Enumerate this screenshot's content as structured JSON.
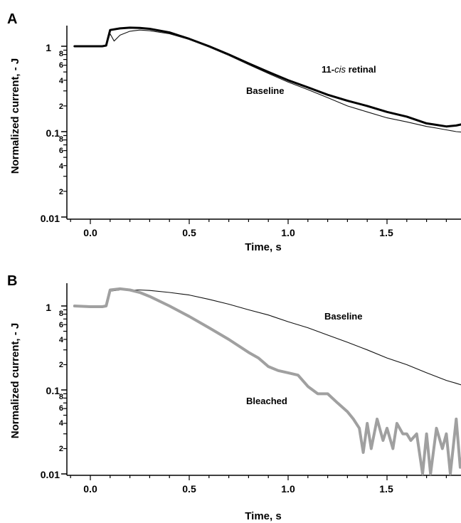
{
  "chart_data": [
    {
      "type": "line",
      "panel_label": "A",
      "xlabel": "Time, s",
      "ylabel": "Normalized current, - J",
      "y_scale": "log",
      "xlim": [
        -0.1,
        1.9
      ],
      "ylim": [
        0.009,
        2.2
      ],
      "x_ticks": [
        "0.0",
        "0.5",
        "1.0",
        "1.5"
      ],
      "y_tick_labels": {
        "major": [
          "1",
          "0.1",
          "0.01"
        ],
        "minor": [
          "8",
          "6",
          "4",
          "2"
        ]
      },
      "annotations": [
        {
          "text_prefix": "11-",
          "text_italic": "cis",
          "text_suffix": " retinal"
        },
        {
          "text": "Baseline"
        }
      ],
      "series": [
        {
          "style": "thick black",
          "x": [
            -0.08,
            0.0,
            0.06,
            0.08,
            0.1,
            0.15,
            0.2,
            0.25,
            0.3,
            0.4,
            0.5,
            0.6,
            0.7,
            0.8,
            0.9,
            1.0,
            1.1,
            1.2,
            1.3,
            1.4,
            1.5,
            1.6,
            1.7,
            1.75,
            1.8,
            1.85,
            1.9
          ],
          "y": [
            1.0,
            1.0,
            1.0,
            1.02,
            1.55,
            1.62,
            1.65,
            1.64,
            1.6,
            1.45,
            1.22,
            1.0,
            0.8,
            0.63,
            0.5,
            0.4,
            0.33,
            0.27,
            0.23,
            0.2,
            0.17,
            0.15,
            0.125,
            0.12,
            0.115,
            0.118,
            0.125
          ]
        },
        {
          "style": "thin black",
          "x": [
            -0.08,
            0.0,
            0.06,
            0.08,
            0.1,
            0.12,
            0.15,
            0.2,
            0.25,
            0.3,
            0.4,
            0.5,
            0.6,
            0.7,
            0.8,
            0.9,
            1.0,
            1.1,
            1.2,
            1.3,
            1.4,
            1.5,
            1.6,
            1.7,
            1.75,
            1.8,
            1.85,
            1.9
          ],
          "y": [
            1.0,
            1.0,
            1.0,
            1.02,
            1.4,
            1.15,
            1.35,
            1.5,
            1.55,
            1.52,
            1.4,
            1.2,
            0.98,
            0.78,
            0.61,
            0.48,
            0.38,
            0.31,
            0.25,
            0.2,
            0.17,
            0.145,
            0.13,
            0.115,
            0.11,
            0.105,
            0.1,
            0.098
          ]
        }
      ]
    },
    {
      "type": "line",
      "panel_label": "B",
      "xlabel": "Time, s",
      "ylabel": "Normalized current, - J",
      "y_scale": "log",
      "xlim": [
        -0.1,
        1.9
      ],
      "ylim": [
        0.009,
        2.2
      ],
      "x_ticks": [
        "0.0",
        "0.5",
        "1.0",
        "1.5"
      ],
      "y_tick_labels": {
        "major": [
          "1",
          "0.1",
          "0.01"
        ],
        "minor": [
          "8",
          "6",
          "4",
          "2"
        ]
      },
      "annotations": [
        {
          "text": "Baseline"
        },
        {
          "text": "Bleached"
        }
      ],
      "series": [
        {
          "style": "thin black",
          "x": [
            -0.08,
            0.0,
            0.06,
            0.08,
            0.1,
            0.15,
            0.2,
            0.25,
            0.3,
            0.4,
            0.5,
            0.6,
            0.7,
            0.8,
            0.9,
            1.0,
            1.1,
            1.2,
            1.3,
            1.4,
            1.5,
            1.6,
            1.7,
            1.8,
            1.85,
            1.9
          ],
          "y": [
            1.0,
            1.0,
            0.98,
            1.0,
            1.5,
            1.55,
            1.55,
            1.55,
            1.53,
            1.45,
            1.35,
            1.2,
            1.05,
            0.9,
            0.78,
            0.65,
            0.55,
            0.45,
            0.37,
            0.3,
            0.24,
            0.2,
            0.16,
            0.13,
            0.12,
            0.11
          ]
        },
        {
          "style": "thick gray",
          "x": [
            -0.08,
            0.0,
            0.06,
            0.08,
            0.1,
            0.15,
            0.2,
            0.25,
            0.3,
            0.4,
            0.5,
            0.6,
            0.7,
            0.8,
            0.85,
            0.9,
            0.95,
            1.0,
            1.05,
            1.1,
            1.15,
            1.2,
            1.25,
            1.3,
            1.33,
            1.36,
            1.38,
            1.4,
            1.42,
            1.45,
            1.48,
            1.5,
            1.53,
            1.55,
            1.58,
            1.6,
            1.62,
            1.65,
            1.68,
            1.7,
            1.72,
            1.75,
            1.78,
            1.8,
            1.82,
            1.85,
            1.87,
            1.9
          ],
          "y": [
            1.0,
            0.98,
            0.98,
            1.0,
            1.55,
            1.6,
            1.55,
            1.45,
            1.3,
            1.0,
            0.75,
            0.55,
            0.4,
            0.28,
            0.24,
            0.19,
            0.17,
            0.16,
            0.15,
            0.11,
            0.09,
            0.09,
            0.07,
            0.055,
            0.045,
            0.035,
            0.018,
            0.04,
            0.02,
            0.045,
            0.025,
            0.035,
            0.02,
            0.04,
            0.03,
            0.03,
            0.025,
            0.03,
            0.01,
            0.03,
            0.01,
            0.035,
            0.02,
            0.03,
            0.01,
            0.045,
            0.012,
            0.025
          ]
        }
      ]
    }
  ]
}
